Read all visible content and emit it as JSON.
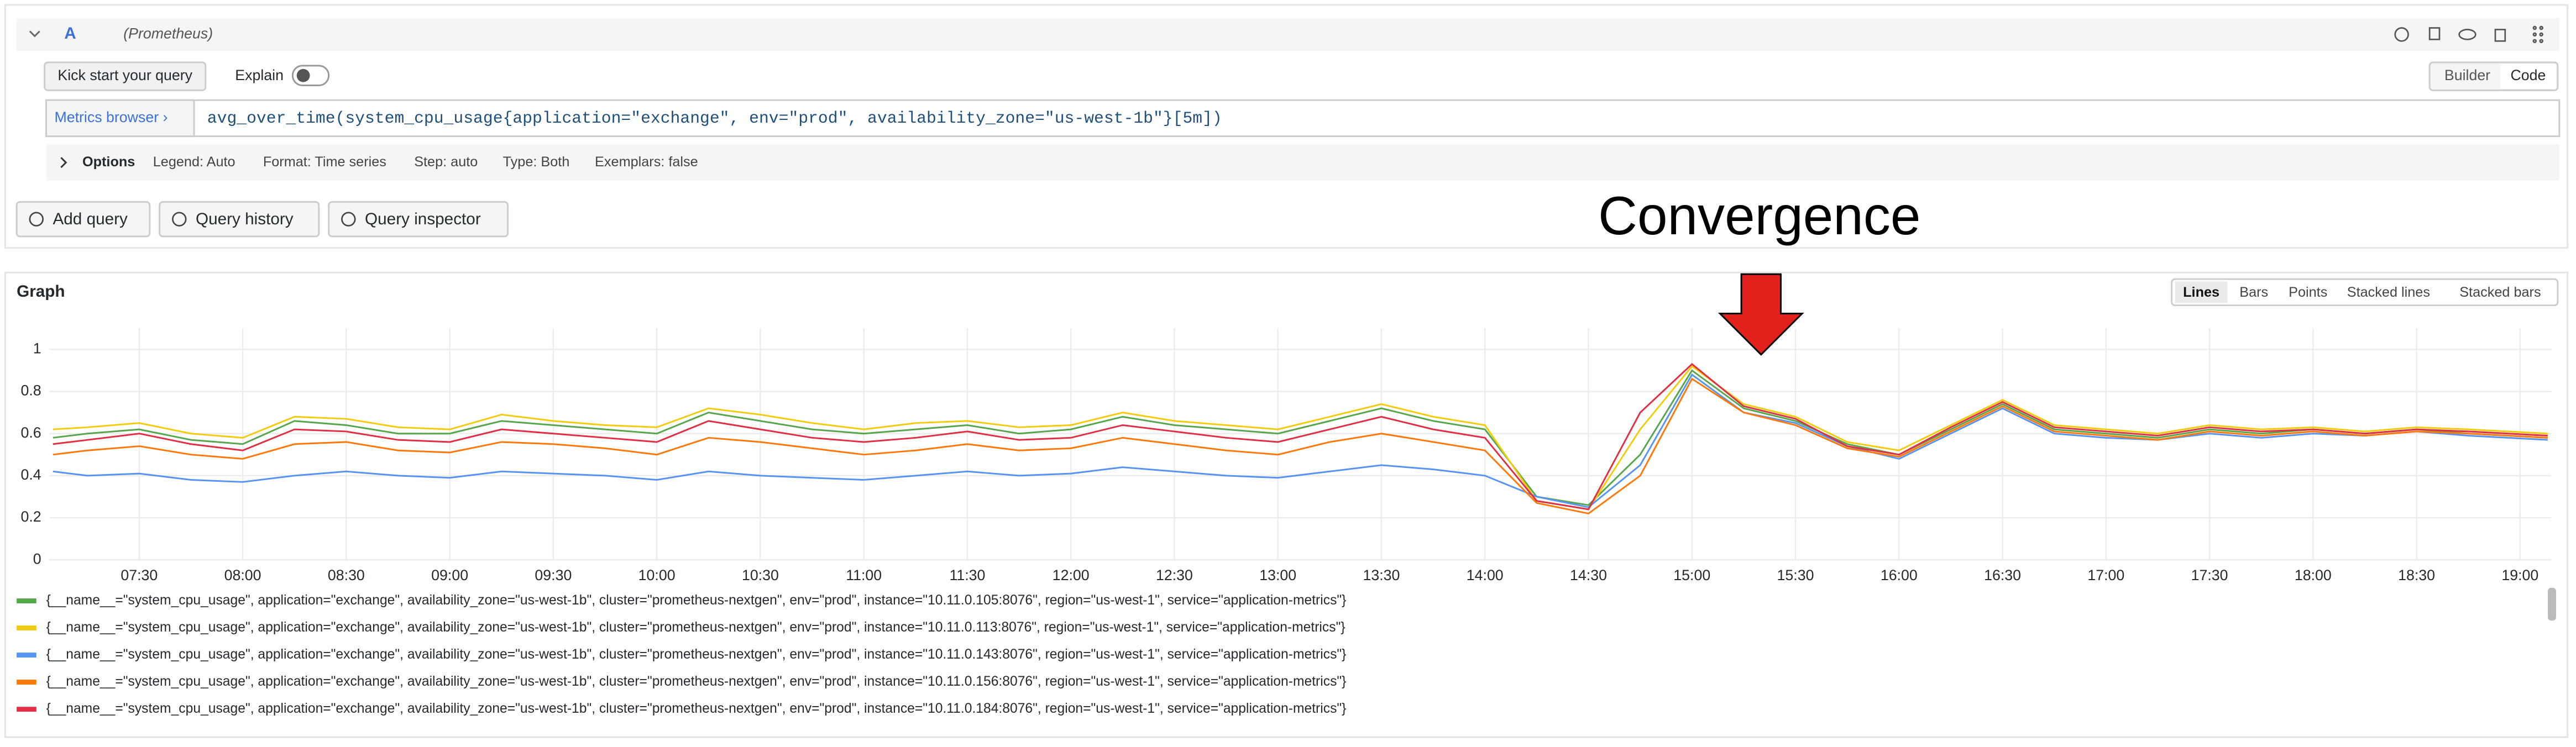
{
  "query_row": {
    "ref_id": "A",
    "datasource": "(Prometheus)",
    "kick_start": "Kick start your query",
    "explain": "Explain",
    "modes": [
      "Builder",
      "Code"
    ],
    "metrics_browser": "Metrics browser ›",
    "query": "avg_over_time(system_cpu_usage{application=\"exchange\", env=\"prod\", availability_zone=\"us-west-1b\"}[5m])"
  },
  "options": {
    "label": "Options",
    "items": [
      "Legend: Auto",
      "Format: Time series",
      "Step: auto",
      "Type: Both",
      "Exemplars: false"
    ]
  },
  "actions": [
    "Add query",
    "Query history",
    "Query inspector"
  ],
  "graph_panel": {
    "title": "Graph",
    "tabs": [
      "Lines",
      "Bars",
      "Points",
      "Stacked lines",
      "Stacked bars"
    ]
  },
  "chart_data": {
    "type": "line",
    "annotation": "Convergence",
    "x": [
      "07:05",
      "07:15",
      "07:30",
      "07:45",
      "08:00",
      "08:15",
      "08:30",
      "08:45",
      "09:00",
      "09:15",
      "09:30",
      "09:45",
      "10:00",
      "10:15",
      "10:30",
      "10:45",
      "11:00",
      "11:15",
      "11:30",
      "11:45",
      "12:00",
      "12:15",
      "12:30",
      "12:45",
      "13:00",
      "13:15",
      "13:30",
      "13:45",
      "14:00",
      "14:15",
      "14:30",
      "14:45",
      "15:00",
      "15:15",
      "15:30",
      "15:45",
      "16:00",
      "16:15",
      "16:30",
      "16:45",
      "17:00",
      "17:15",
      "17:30",
      "17:45",
      "18:00",
      "18:15",
      "18:30",
      "18:45",
      "19:08"
    ],
    "xlim": [
      "07:04",
      "19:09"
    ],
    "xticks": [
      "07:30",
      "08:00",
      "08:30",
      "09:00",
      "09:30",
      "10:00",
      "10:30",
      "11:00",
      "11:30",
      "12:00",
      "12:30",
      "13:00",
      "13:30",
      "14:00",
      "14:30",
      "15:00",
      "15:30",
      "16:00",
      "16:30",
      "17:00",
      "17:30",
      "18:00",
      "18:30",
      "19:00"
    ],
    "ylim": [
      0,
      1.1
    ],
    "yticks": [
      0,
      0.2,
      0.4,
      0.6,
      0.8,
      1
    ],
    "grid": true,
    "series": [
      {
        "name": "{__name__=\"system_cpu_usage\", application=\"exchange\", availability_zone=\"us-west-1b\", cluster=\"prometheus-nextgen\", env=\"prod\", instance=\"10.11.0.105:8076\", region=\"us-west-1\", service=\"application-metrics\"}",
        "color": "#56a64b",
        "values": [
          0.58,
          0.6,
          0.62,
          0.57,
          0.55,
          0.66,
          0.64,
          0.6,
          0.6,
          0.66,
          0.64,
          0.62,
          0.6,
          0.7,
          0.66,
          0.62,
          0.6,
          0.62,
          0.64,
          0.6,
          0.62,
          0.68,
          0.64,
          0.62,
          0.6,
          0.66,
          0.72,
          0.66,
          0.62,
          0.3,
          0.26,
          0.5,
          0.9,
          0.72,
          0.66,
          0.55,
          0.5,
          0.62,
          0.74,
          0.62,
          0.6,
          0.58,
          0.62,
          0.6,
          0.62,
          0.6,
          0.62,
          0.6,
          0.58
        ]
      },
      {
        "name": "{__name__=\"system_cpu_usage\", application=\"exchange\", availability_zone=\"us-west-1b\", cluster=\"prometheus-nextgen\", env=\"prod\", instance=\"10.11.0.113:8076\", region=\"us-west-1\", service=\"application-metrics\"}",
        "color": "#f2cc0c",
        "values": [
          0.62,
          0.63,
          0.65,
          0.6,
          0.58,
          0.68,
          0.67,
          0.63,
          0.62,
          0.69,
          0.66,
          0.64,
          0.63,
          0.72,
          0.69,
          0.65,
          0.62,
          0.65,
          0.66,
          0.63,
          0.64,
          0.7,
          0.66,
          0.64,
          0.62,
          0.68,
          0.74,
          0.68,
          0.64,
          0.28,
          0.24,
          0.62,
          0.92,
          0.74,
          0.68,
          0.56,
          0.52,
          0.64,
          0.76,
          0.64,
          0.62,
          0.6,
          0.64,
          0.62,
          0.63,
          0.61,
          0.63,
          0.62,
          0.6
        ]
      },
      {
        "name": "{__name__=\"system_cpu_usage\", application=\"exchange\", availability_zone=\"us-west-1b\", cluster=\"prometheus-nextgen\", env=\"prod\", instance=\"10.11.0.143:8076\", region=\"us-west-1\", service=\"application-metrics\"}",
        "color": "#5794f2",
        "values": [
          0.42,
          0.4,
          0.41,
          0.38,
          0.37,
          0.4,
          0.42,
          0.4,
          0.39,
          0.42,
          0.41,
          0.4,
          0.38,
          0.42,
          0.4,
          0.39,
          0.38,
          0.4,
          0.42,
          0.4,
          0.41,
          0.44,
          0.42,
          0.4,
          0.39,
          0.42,
          0.45,
          0.43,
          0.4,
          0.3,
          0.25,
          0.45,
          0.88,
          0.7,
          0.65,
          0.54,
          0.48,
          0.6,
          0.72,
          0.6,
          0.58,
          0.57,
          0.6,
          0.58,
          0.6,
          0.59,
          0.61,
          0.59,
          0.57
        ]
      },
      {
        "name": "{__name__=\"system_cpu_usage\", application=\"exchange\", availability_zone=\"us-west-1b\", cluster=\"prometheus-nextgen\", env=\"prod\", instance=\"10.11.0.156:8076\", region=\"us-west-1\", service=\"application-metrics\"}",
        "color": "#ff780a",
        "values": [
          0.5,
          0.52,
          0.54,
          0.5,
          0.48,
          0.55,
          0.56,
          0.52,
          0.51,
          0.56,
          0.55,
          0.53,
          0.5,
          0.58,
          0.56,
          0.53,
          0.5,
          0.52,
          0.55,
          0.52,
          0.53,
          0.58,
          0.55,
          0.52,
          0.5,
          0.56,
          0.6,
          0.56,
          0.52,
          0.27,
          0.22,
          0.4,
          0.86,
          0.7,
          0.64,
          0.53,
          0.49,
          0.61,
          0.73,
          0.61,
          0.59,
          0.57,
          0.61,
          0.59,
          0.61,
          0.59,
          0.61,
          0.6,
          0.58
        ]
      },
      {
        "name": "{__name__=\"system_cpu_usage\", application=\"exchange\", availability_zone=\"us-west-1b\", cluster=\"prometheus-nextgen\", env=\"prod\", instance=\"10.11.0.184:8076\", region=\"us-west-1\", service=\"application-metrics\"}",
        "color": "#e02f44",
        "values": [
          0.55,
          0.57,
          0.6,
          0.55,
          0.52,
          0.62,
          0.61,
          0.57,
          0.56,
          0.62,
          0.6,
          0.58,
          0.56,
          0.66,
          0.62,
          0.58,
          0.56,
          0.58,
          0.61,
          0.57,
          0.58,
          0.64,
          0.61,
          0.58,
          0.56,
          0.62,
          0.68,
          0.62,
          0.58,
          0.28,
          0.24,
          0.7,
          0.93,
          0.73,
          0.67,
          0.54,
          0.5,
          0.63,
          0.75,
          0.63,
          0.61,
          0.59,
          0.63,
          0.61,
          0.62,
          0.6,
          0.62,
          0.61,
          0.59
        ]
      }
    ]
  }
}
